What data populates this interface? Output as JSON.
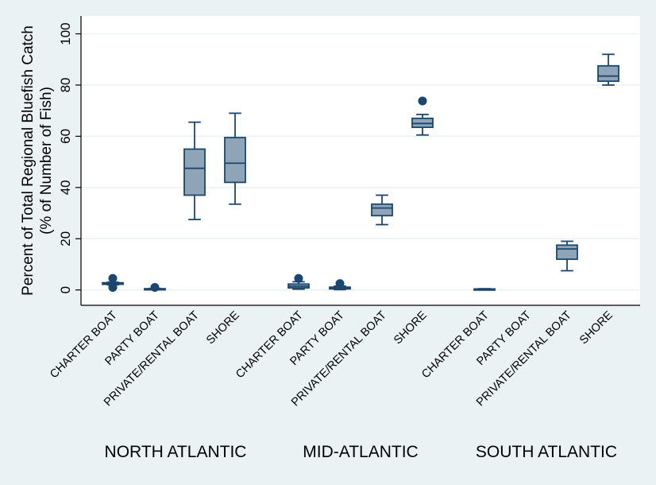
{
  "chart_data": {
    "type": "box",
    "ylabel_line1": "Percent of Total Regional Bluefish Catch",
    "ylabel_line2": "(% of Number of Fish)",
    "ylim": [
      -6,
      107
    ],
    "yticks": [
      0,
      20,
      40,
      60,
      80,
      100
    ],
    "grid": true,
    "colors": {
      "box_fill": "#90a4b8",
      "box_stroke": "#1a476f",
      "plot_bg": "#ffffff",
      "page_bg": "#eaf2f3",
      "grid": "#eaf2f3"
    },
    "groups": [
      {
        "name": "NORTH ATLANTIC",
        "boxes": [
          {
            "category": "CHARTER BOAT",
            "min": 2.0,
            "q1": 2.2,
            "median": 2.5,
            "q3": 2.8,
            "max": 3.0,
            "outliers": [
              4.5,
              1.0
            ]
          },
          {
            "category": "PARTY BOAT",
            "min": 0.1,
            "q1": 0.2,
            "median": 0.4,
            "q3": 0.5,
            "max": 0.6,
            "outliers": [
              1.0
            ]
          },
          {
            "category": "PRIVATE/RENTAL BOAT",
            "min": 27.5,
            "q1": 37.0,
            "median": 47.5,
            "q3": 55.0,
            "max": 65.5,
            "outliers": []
          },
          {
            "category": "SHORE",
            "min": 33.5,
            "q1": 42.0,
            "median": 49.5,
            "q3": 59.5,
            "max": 69.0,
            "outliers": []
          }
        ]
      },
      {
        "name": "MID-ATLANTIC",
        "boxes": [
          {
            "category": "CHARTER BOAT",
            "min": 0.3,
            "q1": 0.8,
            "median": 1.5,
            "q3": 2.3,
            "max": 3.2,
            "outliers": [
              4.5
            ]
          },
          {
            "category": "PARTY BOAT",
            "min": 0.1,
            "q1": 0.4,
            "median": 0.8,
            "q3": 1.1,
            "max": 1.5,
            "outliers": [
              2.5
            ]
          },
          {
            "category": "PRIVATE/RENTAL BOAT",
            "min": 25.5,
            "q1": 29.0,
            "median": 32.0,
            "q3": 33.5,
            "max": 37.0,
            "outliers": []
          },
          {
            "category": "SHORE",
            "min": 60.5,
            "q1": 63.5,
            "median": 65.0,
            "q3": 67.0,
            "max": 68.5,
            "outliers": [
              73.8
            ]
          }
        ]
      },
      {
        "name": "SOUTH ATLANTIC",
        "boxes": [
          {
            "category": "CHARTER BOAT",
            "min": 0.1,
            "q1": 0.2,
            "median": 0.3,
            "q3": 0.4,
            "max": 0.5,
            "outliers": []
          },
          {
            "category": "PARTY BOAT",
            "min": null,
            "q1": null,
            "median": null,
            "q3": null,
            "max": null,
            "outliers": []
          },
          {
            "category": "PRIVATE/RENTAL BOAT",
            "min": 7.5,
            "q1": 12.0,
            "median": 16.0,
            "q3": 17.5,
            "max": 19.0,
            "outliers": []
          },
          {
            "category": "SHORE",
            "min": 80.0,
            "q1": 81.5,
            "median": 83.5,
            "q3": 87.5,
            "max": 92.0,
            "outliers": []
          }
        ]
      }
    ]
  }
}
